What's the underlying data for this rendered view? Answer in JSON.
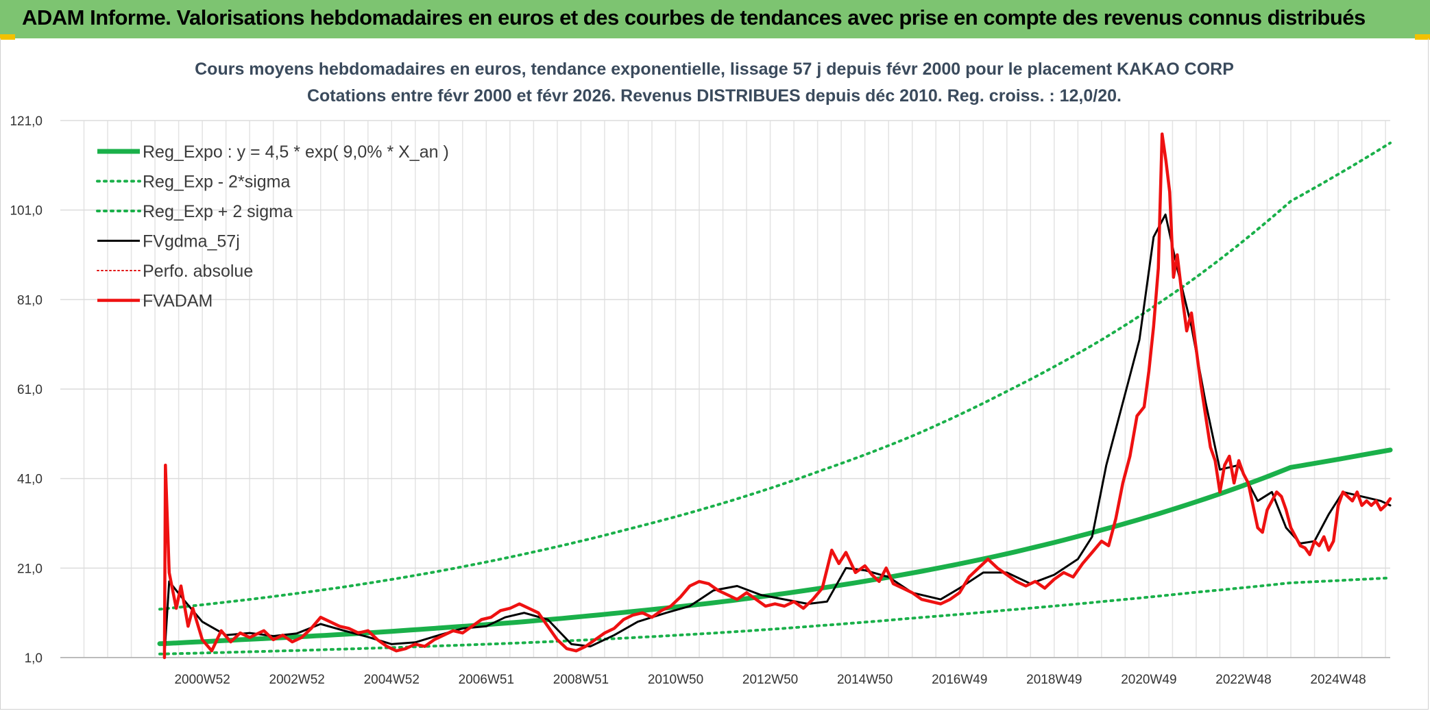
{
  "header": {
    "title": "ADAM Informe. Valorisations hebdomadaires en euros et des courbes de tendances avec prise en compte des revenus connus distribués"
  },
  "colors": {
    "header_bg": "#7dc471",
    "accent_corner": "#f2c100",
    "reg_expo": "#1ab04a",
    "sigma": "#1ab04a",
    "gdma": "#000000",
    "perfo": "#e01010",
    "fvadam": "#ee1111"
  },
  "chart_data": {
    "type": "line",
    "title": "Cours moyens hebdomadaires en euros, tendance exponentielle, lissage 57 j depuis févr 2000 pour le placement KAKAO CORP",
    "subtitle": "Cotations entre févr 2000 et févr 2026. Revenus DISTRIBUES depuis déc 2010. Reg. croiss. : 12,0/20.",
    "xlabel": "",
    "ylabel": "",
    "ylim": [
      1,
      121
    ],
    "xlim": [
      1998.0,
      2026.1
    ],
    "y_ticks": [
      "121,0",
      "101,0",
      "81,0",
      "61,0",
      "41,0",
      "21,0",
      "1,0"
    ],
    "y_tick_values": [
      121,
      101,
      81,
      61,
      41,
      21,
      1
    ],
    "x_ticks": [
      "2000W52",
      "2002W52",
      "2004W52",
      "2006W51",
      "2008W51",
      "2010W50",
      "2012W50",
      "2014W50",
      "2016W49",
      "2018W49",
      "2020W49",
      "2022W48",
      "2024W48"
    ],
    "x_tick_values": [
      2001,
      2003,
      2005,
      2007,
      2009,
      2011,
      2013,
      2015,
      2017,
      2019,
      2021,
      2023,
      2025
    ],
    "grid": true,
    "legend_position": "top-left",
    "series": [
      {
        "name": "Reg_Expo : y = 4,5 * exp( 9,0% *  X_an )",
        "style": "solid-thick",
        "x": [
          2000.1,
          2002,
          2004,
          2006,
          2008,
          2010,
          2012,
          2014,
          2016,
          2018,
          2020,
          2022,
          2024,
          2026.1
        ],
        "y": [
          4.1,
          5.1,
          6.2,
          7.6,
          9.2,
          11.2,
          13.5,
          16.4,
          19.9,
          24.2,
          29.5,
          35.8,
          43.5,
          47.4
        ]
      },
      {
        "name": "Reg_Exp - 2*sigma",
        "style": "dotted",
        "x": [
          2000.1,
          2002,
          2004,
          2006,
          2008,
          2010,
          2012,
          2014,
          2016,
          2018,
          2020,
          2022,
          2024,
          2026.1
        ],
        "y": [
          1.8,
          2.3,
          2.9,
          3.6,
          4.4,
          5.4,
          6.6,
          8.1,
          9.8,
          11.6,
          13.5,
          15.6,
          17.7,
          18.8
        ]
      },
      {
        "name": "Reg_Exp + 2 sigma",
        "style": "dotted",
        "x": [
          2000.1,
          2002,
          2004,
          2006,
          2008,
          2010,
          2012,
          2014,
          2016,
          2018,
          2020,
          2022,
          2024,
          2026.1
        ],
        "y": [
          11.8,
          14.0,
          16.8,
          20.3,
          24.6,
          29.7,
          35.5,
          42.5,
          50.5,
          60.5,
          72.0,
          86.0,
          103.0,
          116.0
        ]
      },
      {
        "name": "FVgdma_57j",
        "style": "solid",
        "x": [
          2000.2,
          2000.3,
          2000.6,
          2001.0,
          2001.5,
          2002.0,
          2002.5,
          2003.0,
          2003.5,
          2004.0,
          2004.5,
          2005.0,
          2005.5,
          2006.0,
          2006.5,
          2007.0,
          2007.4,
          2007.8,
          2008.3,
          2008.8,
          2009.2,
          2009.7,
          2010.2,
          2010.8,
          2011.3,
          2011.8,
          2012.3,
          2012.8,
          2013.3,
          2013.8,
          2014.2,
          2014.6,
          2015.0,
          2015.5,
          2016.0,
          2016.6,
          2017.0,
          2017.5,
          2018.0,
          2018.5,
          2019.0,
          2019.5,
          2019.8,
          2020.1,
          2020.4,
          2020.8,
          2021.1,
          2021.35,
          2021.6,
          2021.9,
          2022.2,
          2022.5,
          2022.9,
          2023.3,
          2023.6,
          2023.9,
          2024.2,
          2024.5,
          2024.8,
          2025.1,
          2025.5,
          2025.9,
          2026.1
        ],
        "y": [
          1.5,
          18.0,
          14.0,
          9.0,
          6.0,
          6.5,
          5.8,
          6.4,
          8.5,
          7.0,
          5.6,
          4.0,
          4.4,
          6.0,
          7.5,
          8.0,
          10.0,
          11.0,
          9.5,
          4.0,
          3.5,
          6.0,
          9.0,
          11.0,
          12.5,
          16.0,
          17.0,
          15.0,
          14.0,
          13.0,
          13.5,
          21.0,
          20.5,
          19.0,
          15.5,
          14.0,
          16.5,
          20.0,
          20.0,
          17.5,
          19.5,
          23.0,
          28.0,
          44.0,
          56.0,
          72.0,
          95.0,
          100.0,
          88.0,
          75.0,
          58.0,
          43.0,
          44.0,
          36.0,
          38.0,
          30.0,
          26.5,
          27.0,
          33.0,
          38.0,
          37.0,
          36.0,
          35.0
        ]
      },
      {
        "name": "Perfo. absolue",
        "style": "dotted-thin",
        "x": [],
        "y": []
      },
      {
        "name": "FVADAM",
        "style": "solid-thick",
        "x": [
          2000.2,
          2000.22,
          2000.3,
          2000.45,
          2000.55,
          2000.7,
          2000.8,
          2001.0,
          2001.2,
          2001.4,
          2001.6,
          2001.8,
          2002.0,
          2002.3,
          2002.5,
          2002.7,
          2002.9,
          2003.1,
          2003.3,
          2003.5,
          2003.7,
          2003.9,
          2004.1,
          2004.3,
          2004.5,
          2004.7,
          2004.9,
          2005.1,
          2005.3,
          2005.5,
          2005.7,
          2005.9,
          2006.1,
          2006.3,
          2006.5,
          2006.7,
          2006.9,
          2007.1,
          2007.3,
          2007.5,
          2007.7,
          2007.9,
          2008.1,
          2008.3,
          2008.5,
          2008.7,
          2008.9,
          2009.1,
          2009.3,
          2009.5,
          2009.7,
          2009.9,
          2010.1,
          2010.3,
          2010.5,
          2010.7,
          2010.9,
          2011.1,
          2011.3,
          2011.5,
          2011.7,
          2011.9,
          2012.1,
          2012.3,
          2012.5,
          2012.7,
          2012.9,
          2013.1,
          2013.3,
          2013.5,
          2013.7,
          2013.9,
          2014.1,
          2014.3,
          2014.45,
          2014.6,
          2014.8,
          2015.0,
          2015.15,
          2015.3,
          2015.45,
          2015.6,
          2015.8,
          2016.0,
          2016.2,
          2016.4,
          2016.6,
          2016.8,
          2017.0,
          2017.2,
          2017.4,
          2017.6,
          2017.8,
          2018.0,
          2018.2,
          2018.4,
          2018.6,
          2018.8,
          2019.0,
          2019.2,
          2019.4,
          2019.6,
          2019.8,
          2020.0,
          2020.15,
          2020.3,
          2020.45,
          2020.6,
          2020.75,
          2020.9,
          2021.0,
          2021.1,
          2021.2,
          2021.28,
          2021.36,
          2021.44,
          2021.52,
          2021.6,
          2021.7,
          2021.8,
          2021.9,
          2022.0,
          2022.1,
          2022.2,
          2022.3,
          2022.4,
          2022.5,
          2022.6,
          2022.7,
          2022.8,
          2022.9,
          2023.0,
          2023.1,
          2023.2,
          2023.3,
          2023.4,
          2023.5,
          2023.6,
          2023.7,
          2023.8,
          2023.9,
          2024.0,
          2024.1,
          2024.2,
          2024.3,
          2024.4,
          2024.5,
          2024.6,
          2024.7,
          2024.8,
          2024.9,
          2025.0,
          2025.1,
          2025.2,
          2025.3,
          2025.4,
          2025.5,
          2025.6,
          2025.7,
          2025.8,
          2025.9,
          2026.0,
          2026.1
        ],
        "y": [
          1.0,
          44.0,
          20.0,
          12.0,
          17.0,
          8.0,
          12.0,
          5.0,
          2.5,
          7.0,
          4.5,
          6.5,
          5.5,
          7.0,
          5.0,
          6.0,
          4.5,
          5.5,
          7.5,
          10.0,
          9.0,
          8.0,
          7.5,
          6.5,
          7.0,
          5.0,
          3.5,
          2.5,
          3.0,
          4.0,
          3.5,
          5.0,
          6.0,
          7.0,
          6.5,
          8.0,
          9.5,
          10.0,
          11.5,
          12.0,
          13.0,
          12.0,
          11.0,
          8.0,
          5.0,
          3.0,
          2.5,
          3.5,
          5.0,
          6.5,
          7.5,
          9.5,
          10.5,
          11.0,
          10.0,
          11.5,
          12.5,
          14.5,
          17.0,
          18.0,
          17.5,
          16.0,
          15.0,
          14.0,
          15.5,
          14.0,
          12.5,
          13.0,
          12.5,
          13.5,
          12.0,
          14.0,
          16.5,
          25.0,
          22.0,
          24.5,
          20.0,
          21.5,
          19.5,
          18.0,
          21.0,
          17.5,
          16.5,
          15.5,
          14.0,
          13.5,
          13.0,
          14.0,
          15.5,
          19.0,
          21.0,
          23.0,
          21.0,
          19.5,
          18.0,
          17.0,
          18.0,
          16.5,
          18.5,
          20.0,
          19.0,
          22.0,
          24.5,
          27.0,
          26.0,
          32.0,
          40.0,
          46.0,
          55.0,
          57.0,
          65.0,
          75.0,
          88.0,
          118.0,
          112.0,
          105.0,
          86.0,
          91.0,
          82.0,
          74.0,
          78.0,
          70.0,
          62.0,
          55.0,
          48.0,
          45.0,
          38.0,
          44.0,
          46.0,
          40.0,
          45.0,
          42.0,
          40.0,
          35.0,
          30.0,
          29.0,
          34.0,
          36.0,
          38.0,
          37.0,
          34.0,
          30.0,
          28.0,
          26.0,
          25.5,
          24.0,
          27.0,
          26.0,
          28.0,
          25.0,
          27.0,
          35.0,
          38.0,
          37.0,
          36.0,
          38.0,
          35.0,
          36.0,
          35.0,
          36.0,
          34.0,
          35.0,
          36.5
        ]
      }
    ]
  }
}
